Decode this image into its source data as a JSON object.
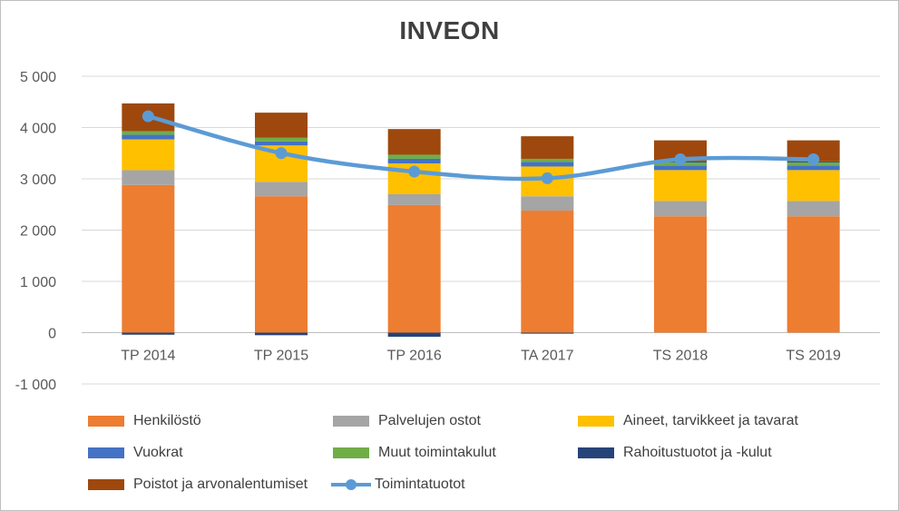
{
  "chart_data": {
    "type": "bar",
    "stacked": true,
    "title": "INVEON",
    "categories": [
      "TP 2014",
      "TP 2015",
      "TP 2016",
      "TA 2017",
      "TS 2018",
      "TS 2019"
    ],
    "ylim": [
      -1000,
      5000
    ],
    "yticks": [
      -1000,
      0,
      1000,
      2000,
      3000,
      4000,
      5000
    ],
    "ytick_labels": [
      "-1 000",
      "0",
      "1 000",
      "2 000",
      "3 000",
      "4 000",
      "5 000"
    ],
    "grid": true,
    "legend_position": "bottom",
    "series": [
      {
        "name": "Henkilöstö",
        "color": "#ed7d31",
        "values": [
          2880,
          2660,
          2490,
          2380,
          2270,
          2270
        ]
      },
      {
        "name": "Palvelujen ostot",
        "color": "#a5a5a5",
        "values": [
          290,
          280,
          210,
          280,
          300,
          300
        ]
      },
      {
        "name": "Aineet, tarvikkeet ja tavarat",
        "color": "#ffc000",
        "values": [
          600,
          710,
          600,
          580,
          600,
          600
        ]
      },
      {
        "name": "Vuokrat",
        "color": "#4472c4",
        "values": [
          90,
          80,
          90,
          90,
          90,
          90
        ]
      },
      {
        "name": "Muut toimintakulut",
        "color": "#70ad47",
        "values": [
          70,
          70,
          80,
          60,
          60,
          60
        ]
      },
      {
        "name": "Rahoitustuotot ja -kulut",
        "color": "#264478",
        "values": [
          -40,
          -50,
          -80,
          -20,
          20,
          20
        ]
      },
      {
        "name": "Poistot ja arvonalentumiset",
        "color": "#9e480e",
        "values": [
          540,
          490,
          500,
          440,
          410,
          410
        ]
      }
    ],
    "line_series": {
      "name": "Toimintatuotot",
      "color": "#5b9bd5",
      "values": [
        4220,
        3500,
        3140,
        3010,
        3380,
        3380
      ]
    }
  }
}
